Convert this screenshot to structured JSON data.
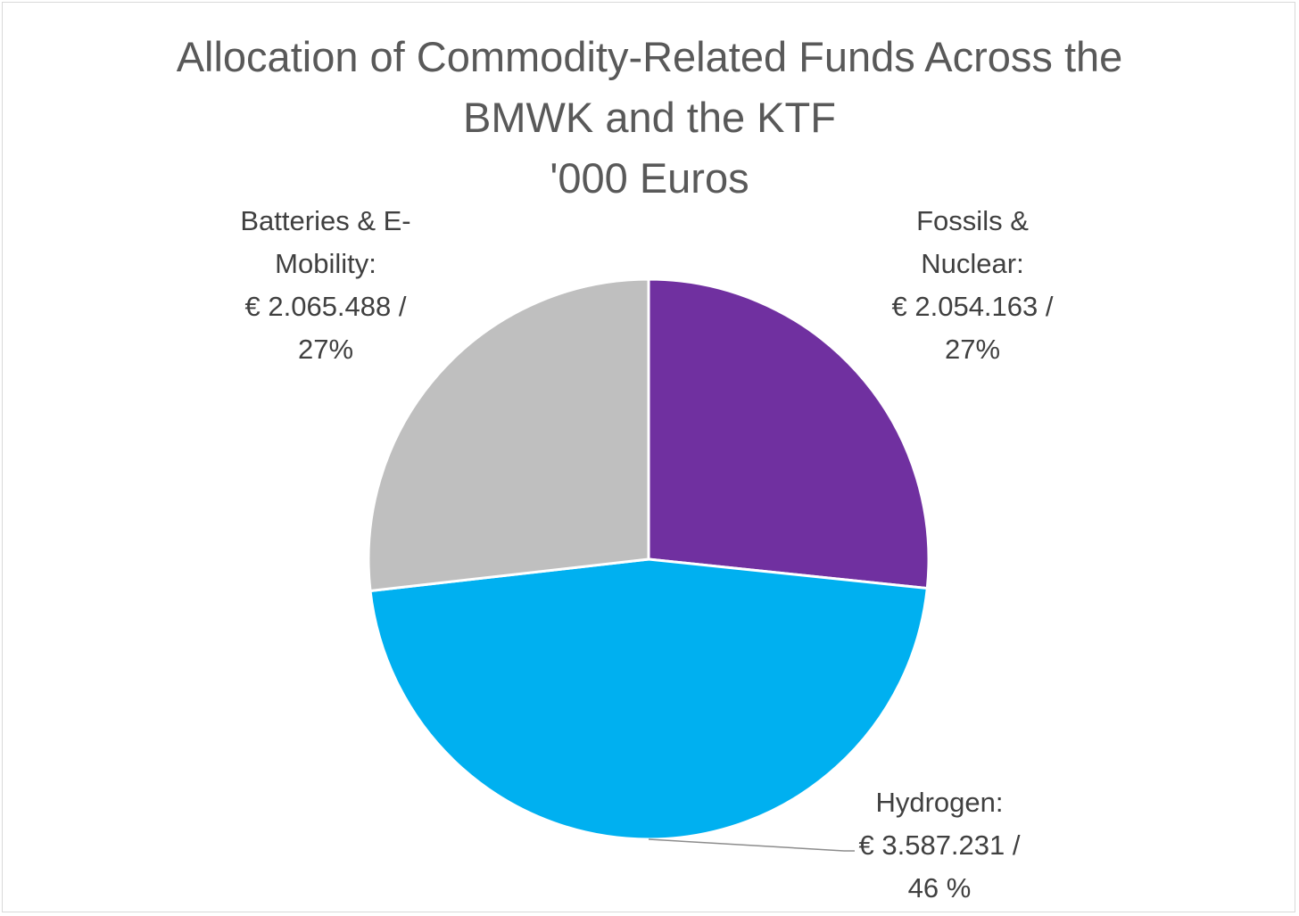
{
  "chart_data": {
    "type": "pie",
    "title_lines": [
      "Allocation of Commodity-Related Funds Across the",
      "BMWK and the KTF",
      "'000 Euros"
    ],
    "start_angle_deg": 0,
    "direction": "clockwise",
    "slices": [
      {
        "key": "fossils",
        "category": "Fossils & Nuclear",
        "value": 2054163,
        "percent_label": "27%",
        "color": "#7030a0",
        "label_lines": [
          "Fossils &",
          "Nuclear:",
          "€ 2.054.163 /",
          "27%"
        ]
      },
      {
        "key": "hydrogen",
        "category": "Hydrogen",
        "value": 3587231,
        "percent_label": "46 %",
        "color": "#00b0f0",
        "label_lines": [
          "Hydrogen:",
          "€ 3.587.231 /",
          "46 %"
        ]
      },
      {
        "key": "batteries",
        "category": "Batteries & E-Mobility",
        "value": 2065488,
        "percent_label": "27%",
        "color": "#bfbfbf",
        "label_lines": [
          "Batteries & E-",
          "Mobility:",
          "€ 2.065.488 /",
          "27%"
        ]
      }
    ],
    "legend": "none"
  }
}
